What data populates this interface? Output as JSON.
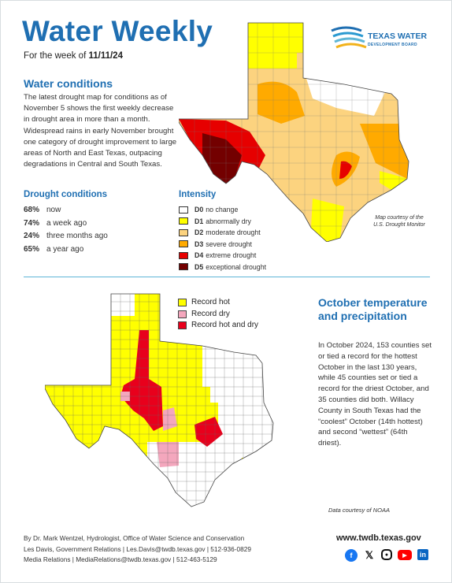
{
  "header": {
    "title": "Water Weekly",
    "week_prefix": "For the week of",
    "week_date": "11/11/24",
    "logo_name": "TEXAS WATER",
    "logo_sub": "DEVELOPMENT BOARD"
  },
  "water_conditions": {
    "heading": "Water conditions",
    "body": "The latest drought map for conditions as of November 5 shows the first weekly decrease in drought area in more than a month. Widespread rains in early November brought one category of drought improvement to large areas of North and East Texas, outpacing degradations in Central and South Texas."
  },
  "drought_conditions": {
    "heading": "Drought conditions",
    "items": [
      {
        "value": "68%",
        "label": "now"
      },
      {
        "value": "74%",
        "label": "a week ago"
      },
      {
        "value": "24%",
        "label": "three months ago"
      },
      {
        "value": "65%",
        "label": "a year ago"
      }
    ]
  },
  "intensity": {
    "heading": "Intensity",
    "items": [
      {
        "code": "D0",
        "label": "no change",
        "color": "#ffffff"
      },
      {
        "code": "D1",
        "label": "abnormally dry",
        "color": "#ffff00"
      },
      {
        "code": "D2",
        "label": "moderate drought",
        "color": "#fcd37f"
      },
      {
        "code": "D3",
        "label": "severe drought",
        "color": "#ffaa00"
      },
      {
        "code": "D4",
        "label": "extreme drought",
        "color": "#e60000"
      },
      {
        "code": "D5",
        "label": "exceptional drought",
        "color": "#730000"
      }
    ],
    "credit_line1": "Map courtesy of the",
    "credit_line2": "U.S. Drought Monitor"
  },
  "records": {
    "legend": [
      {
        "label": "Record hot",
        "color": "#ffff00"
      },
      {
        "label": "Record dry",
        "color": "#f4a7bd"
      },
      {
        "label": "Record hot and dry",
        "color": "#e8001c"
      }
    ],
    "credit": "Data courtesy of NOAA"
  },
  "october": {
    "heading": "October temperature and precipitation",
    "body": "In October 2024, 153 counties set or tied a record for the hottest October in the last 130 years, while 45 counties set or tied a record for the driest October, and 35 counties did both. Willacy County in South Texas had the “coolest” October (14th hottest) and second “wettest” (64th driest)."
  },
  "footer": {
    "author": "By Dr. Mark Wentzel, Hydrologist, Office of Water Science and Conservation",
    "contact1": "Les Davis, Government Relations  |  Les.Davis@twdb.texas.gov  |  512-936-0829",
    "contact2": "Media Relations  |  MediaRelations@twdb.texas.gov  |  512-463-5129",
    "website": "www.twdb.texas.gov",
    "social_icons": [
      "facebook-icon",
      "x-icon",
      "instagram-icon",
      "youtube-icon",
      "linkedin-icon"
    ]
  }
}
